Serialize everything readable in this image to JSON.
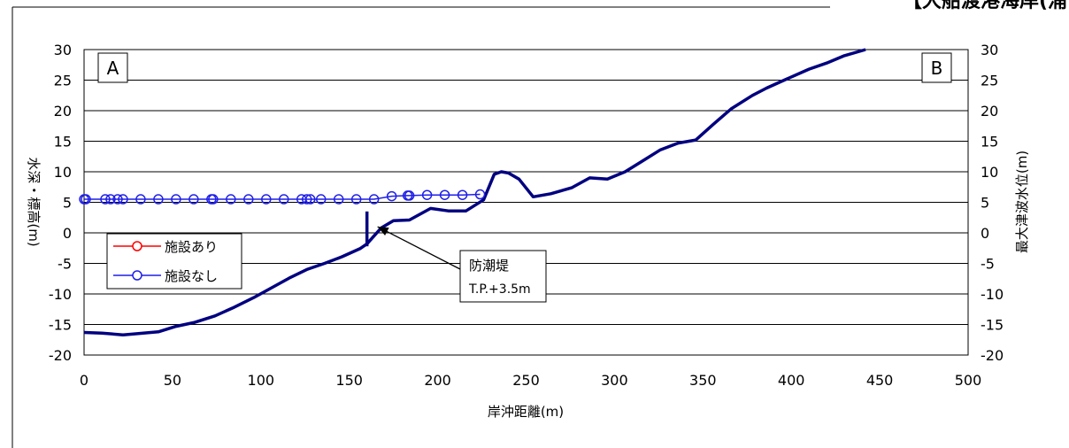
{
  "page": {
    "top_right_title": "【大船渡港海岸(浦"
  },
  "chart_data": {
    "type": "line",
    "xlabel": "岸沖距離(m)",
    "ylabel_left": "水深・標高(m)",
    "ylabel_right": "最大津波水位(m)",
    "xlim": [
      0,
      500
    ],
    "ylim": [
      -20,
      30
    ],
    "x_ticks": [
      0,
      50,
      100,
      150,
      200,
      250,
      300,
      350,
      400,
      450,
      500
    ],
    "y_ticks": [
      30,
      25,
      20,
      15,
      10,
      5,
      0,
      -5,
      -10,
      -15,
      -20
    ],
    "grid": "horizontal",
    "corner_labels": {
      "left": "A",
      "right": "B"
    },
    "legend": {
      "placement": "left-middle",
      "entries": [
        {
          "name": "施設あり",
          "color": "#ff0000",
          "marker": "circle"
        },
        {
          "name": "施設なし",
          "color": "#1f1fe8",
          "marker": "circle"
        }
      ]
    },
    "annotation": {
      "line1": "防潮堤",
      "line2": "T.P.+3.5m",
      "arrow_to": {
        "x": 166,
        "y": 1
      }
    },
    "seawall": {
      "x": 160,
      "y_top": 3.5,
      "y_bottom": -2.2
    },
    "terrain": {
      "color": "#000080",
      "x": [
        0,
        10,
        22,
        30,
        42,
        52,
        62,
        74,
        84,
        96,
        106,
        116,
        126,
        136,
        146,
        156,
        160,
        164,
        168,
        175,
        184,
        196,
        206,
        216,
        226,
        232,
        236,
        240,
        246,
        254,
        264,
        276,
        286,
        296,
        306,
        316,
        326,
        336,
        346,
        356,
        366,
        378,
        386,
        396,
        410,
        420,
        430,
        442
      ],
      "y": [
        -16.3,
        -16.4,
        -16.7,
        -16.5,
        -16.2,
        -15.3,
        -14.7,
        -13.6,
        -12.3,
        -10.6,
        -9.0,
        -7.4,
        -6.0,
        -5.0,
        -3.9,
        -2.6,
        -1.8,
        -0.5,
        0.8,
        2.0,
        2.1,
        4.0,
        3.6,
        3.6,
        5.4,
        9.6,
        10.0,
        9.8,
        8.8,
        5.9,
        6.4,
        7.4,
        9.0,
        8.8,
        10.0,
        11.8,
        13.6,
        14.7,
        15.2,
        17.8,
        20.3,
        22.5,
        23.7,
        25.0,
        26.8,
        27.8,
        29.0,
        30.0
      ]
    },
    "series": [
      {
        "name": "施設あり",
        "color": "#ff0000",
        "x": [],
        "y": []
      },
      {
        "name": "施設なし",
        "color": "#1f1fe8",
        "x": [
          0,
          1,
          12,
          15,
          19,
          22,
          32,
          42,
          52,
          62,
          72,
          73,
          83,
          93,
          103,
          113,
          123,
          126,
          128,
          134,
          144,
          154,
          164,
          174,
          183,
          184,
          194,
          204,
          214,
          224
        ],
        "y": [
          5.5,
          5.5,
          5.5,
          5.5,
          5.5,
          5.5,
          5.5,
          5.5,
          5.5,
          5.5,
          5.5,
          5.5,
          5.5,
          5.5,
          5.5,
          5.5,
          5.5,
          5.5,
          5.5,
          5.5,
          5.5,
          5.5,
          5.5,
          6.0,
          6.1,
          6.1,
          6.2,
          6.2,
          6.2,
          6.3
        ]
      }
    ]
  }
}
